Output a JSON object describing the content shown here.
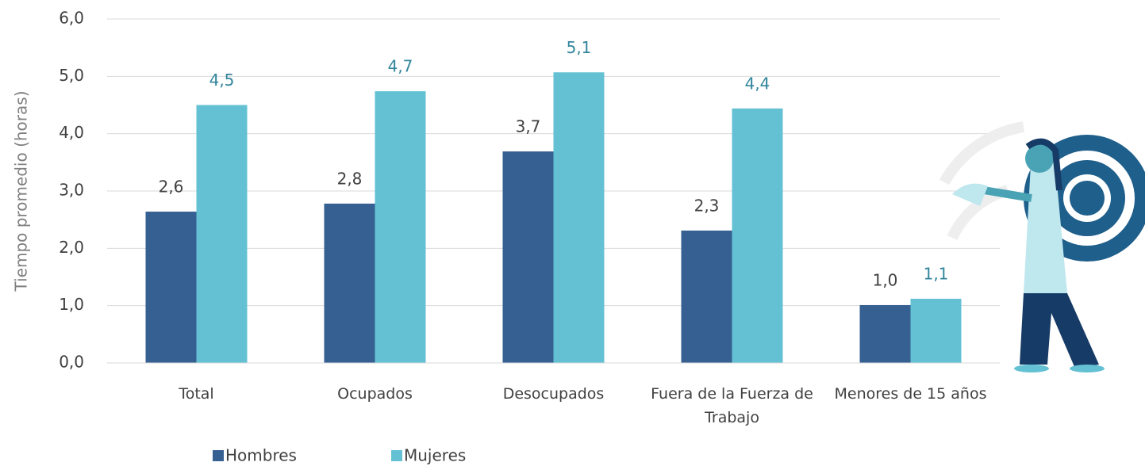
{
  "chart_data": {
    "type": "bar",
    "y_label": "Tiempo promedio (horas)",
    "categories": [
      "Total",
      "Ocupados",
      "Desocupados",
      "Fuera de la Fuerza de Trabajo",
      "Menores de 15 años"
    ],
    "series": [
      {
        "name": "Hombres",
        "color": "#376092",
        "label_color": "#404040",
        "values": [
          2.64,
          2.78,
          3.69,
          2.31,
          1.01
        ],
        "value_labels": [
          "2,6",
          "2,8",
          "3,7",
          "2,3",
          "1,0"
        ]
      },
      {
        "name": "Mujeres",
        "color": "#63c1d3",
        "label_color": "#31859c",
        "values": [
          4.5,
          4.74,
          5.07,
          4.44,
          1.12
        ],
        "value_labels": [
          "4,5",
          "4,7",
          "5,1",
          "4,4",
          "1,1"
        ]
      }
    ],
    "ylim": [
      0,
      6
    ],
    "yticks": [
      {
        "value": 0,
        "label": "0,0"
      },
      {
        "value": 1,
        "label": "1,0"
      },
      {
        "value": 2,
        "label": "2,0"
      },
      {
        "value": 3,
        "label": "3,0"
      },
      {
        "value": 4,
        "label": "4,0"
      },
      {
        "value": 5,
        "label": "5,0"
      },
      {
        "value": 6,
        "label": "6,0"
      }
    ],
    "grid": true
  }
}
